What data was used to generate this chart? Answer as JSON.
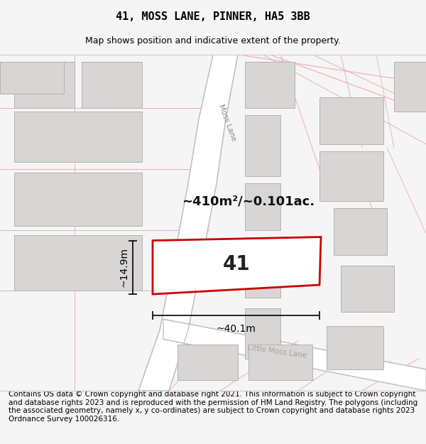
{
  "title": "41, MOSS LANE, PINNER, HA5 3BB",
  "subtitle": "Map shows position and indicative extent of the property.",
  "footer": "Contains OS data © Crown copyright and database right 2021. This information is subject to Crown copyright and database rights 2023 and is reproduced with the permission of HM Land Registry. The polygons (including the associated geometry, namely x, y co-ordinates) are subject to Crown copyright and database rights 2023 Ordnance Survey 100026316.",
  "plot_rect_color": "#cc0000",
  "plot_label": "41",
  "area_label": "~410m²/~0.101ac.",
  "width_label": "~40.1m",
  "height_label": "~14.9m",
  "road_label_upper": "Moss Lane",
  "road_label_lower": "Moss Lane",
  "road_label_little": "Little Moss Lane",
  "title_fontsize": 11,
  "subtitle_fontsize": 9,
  "footer_fontsize": 7.5
}
